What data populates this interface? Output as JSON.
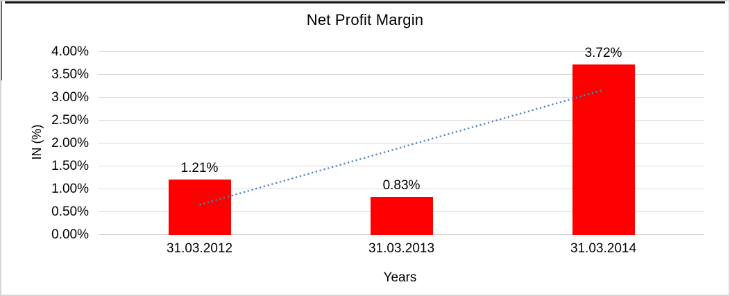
{
  "chart_data": {
    "type": "bar",
    "title": "Net Profit Margin",
    "xlabel": "Years",
    "ylabel": "IN (%)",
    "categories": [
      "31.03.2012",
      "31.03.2013",
      "31.03.2014"
    ],
    "values": [
      1.21,
      0.83,
      3.72
    ],
    "data_labels": [
      "1.21%",
      "0.83%",
      "3.72%"
    ],
    "ylim": [
      0,
      4
    ],
    "ytick_step": 0.5,
    "ytick_labels": [
      "0.00%",
      "0.50%",
      "1.00%",
      "1.50%",
      "2.00%",
      "2.50%",
      "3.00%",
      "3.50%",
      "4.00%"
    ],
    "grid": true,
    "legend": "none",
    "colors": {
      "bar": "#ff0000",
      "trendline": "#4e81bd",
      "gridline": "#d9d9d9",
      "text": "#000000"
    },
    "trendline": {
      "type": "linear",
      "style": "dotted",
      "start_value": 0.66,
      "end_value": 3.17
    }
  }
}
